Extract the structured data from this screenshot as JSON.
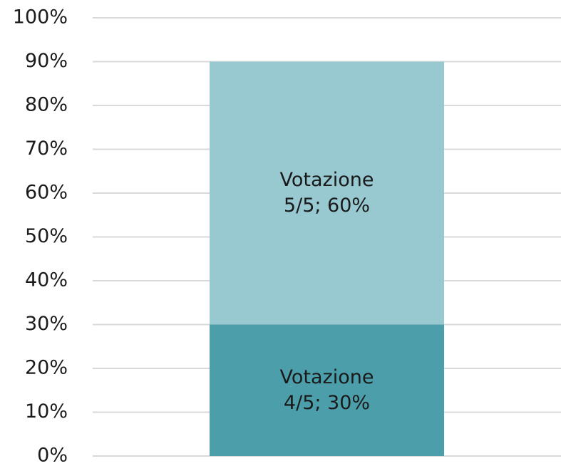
{
  "chart_data": {
    "type": "stacked_bar",
    "categories": [
      null
    ],
    "series": [
      {
        "name": "Votazione 4/5",
        "color": "#4c9faa",
        "values": [
          30
        ],
        "value_labels": [
          "Votazione 4/5; 30%"
        ]
      },
      {
        "name": "Votazione 5/5",
        "color": "#98c9d0",
        "values": [
          60
        ],
        "value_labels": [
          "Votazione 5/5; 60%"
        ]
      }
    ],
    "ylim": [
      0,
      100
    ],
    "yticks": [
      {
        "value": 0,
        "label": "0%"
      },
      {
        "value": 10,
        "label": "10%"
      },
      {
        "value": 20,
        "label": "20%"
      },
      {
        "value": 30,
        "label": "30%"
      },
      {
        "value": 40,
        "label": "40%"
      },
      {
        "value": 50,
        "label": "50%"
      },
      {
        "value": 60,
        "label": "60%"
      },
      {
        "value": 70,
        "label": "70%"
      },
      {
        "value": 80,
        "label": "80%"
      },
      {
        "value": 90,
        "label": "90%"
      },
      {
        "value": 100,
        "label": "100%"
      }
    ],
    "grid": true
  }
}
